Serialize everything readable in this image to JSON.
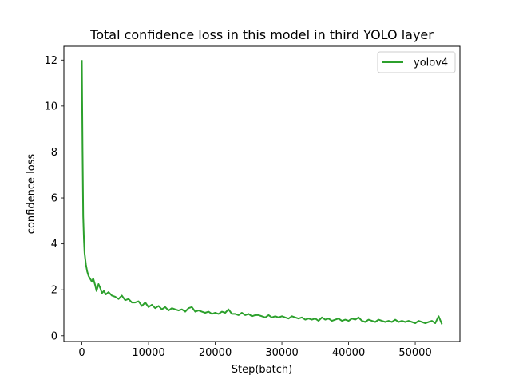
{
  "chart_data": {
    "type": "line",
    "title": "Total confidence loss in this model in third YOLO layer",
    "xlabel": "Step(batch)",
    "ylabel": "confidence loss",
    "xlim": [
      -2700,
      56700
    ],
    "ylim": [
      -0.25,
      12.6
    ],
    "xticks": [
      0,
      10000,
      20000,
      30000,
      40000,
      50000
    ],
    "xtick_labels": [
      "0",
      "10000",
      "20000",
      "30000",
      "40000",
      "50000"
    ],
    "yticks": [
      0,
      2,
      4,
      6,
      8,
      10,
      12
    ],
    "ytick_labels": [
      "0",
      "2",
      "4",
      "6",
      "8",
      "10",
      "12"
    ],
    "grid": false,
    "legend_position": "top-right",
    "colors": {
      "series": "#2ca02c",
      "axes": "#000000",
      "legend_border": "#cccccc"
    },
    "series": [
      {
        "name": "yolov4",
        "color": "#2ca02c",
        "x": [
          0,
          100,
          200,
          300,
          400,
          600,
          800,
          1000,
          1200,
          1500,
          1700,
          2000,
          2200,
          2500,
          2800,
          3000,
          3300,
          3600,
          4000,
          4500,
          5000,
          5500,
          6000,
          6500,
          7000,
          7500,
          8000,
          8500,
          9000,
          9500,
          10000,
          10500,
          11000,
          11500,
          12000,
          12500,
          13000,
          13500,
          14000,
          14500,
          15000,
          15500,
          16000,
          16500,
          17000,
          17500,
          18000,
          18500,
          19000,
          19500,
          20000,
          20500,
          21000,
          21500,
          22000,
          22500,
          23000,
          23500,
          24000,
          24500,
          25000,
          25500,
          26000,
          26500,
          27000,
          27500,
          28000,
          28500,
          29000,
          29500,
          30000,
          30500,
          31000,
          31500,
          32000,
          32500,
          33000,
          33500,
          34000,
          34500,
          35000,
          35500,
          36000,
          36500,
          37000,
          37500,
          38000,
          38500,
          39000,
          39500,
          40000,
          40500,
          41000,
          41500,
          42000,
          42500,
          43000,
          43500,
          44000,
          44500,
          45000,
          45500,
          46000,
          46500,
          47000,
          47500,
          48000,
          48500,
          49000,
          49500,
          50000,
          50500,
          51000,
          51500,
          52000,
          52500,
          53000,
          53500,
          54000
        ],
        "y": [
          12.0,
          8.0,
          5.2,
          4.2,
          3.6,
          3.1,
          2.8,
          2.6,
          2.5,
          2.35,
          2.5,
          2.2,
          1.95,
          2.25,
          2.05,
          1.85,
          1.95,
          1.8,
          1.9,
          1.75,
          1.7,
          1.6,
          1.75,
          1.55,
          1.6,
          1.45,
          1.45,
          1.5,
          1.3,
          1.45,
          1.25,
          1.35,
          1.2,
          1.3,
          1.15,
          1.25,
          1.1,
          1.2,
          1.15,
          1.1,
          1.15,
          1.05,
          1.2,
          1.25,
          1.05,
          1.1,
          1.05,
          1.0,
          1.05,
          0.95,
          1.0,
          0.95,
          1.05,
          1.0,
          1.15,
          0.95,
          0.95,
          0.9,
          1.0,
          0.9,
          0.95,
          0.85,
          0.9,
          0.9,
          0.85,
          0.8,
          0.9,
          0.8,
          0.85,
          0.8,
          0.85,
          0.8,
          0.75,
          0.85,
          0.8,
          0.75,
          0.8,
          0.7,
          0.75,
          0.7,
          0.75,
          0.65,
          0.8,
          0.7,
          0.75,
          0.65,
          0.7,
          0.75,
          0.65,
          0.7,
          0.65,
          0.75,
          0.7,
          0.8,
          0.65,
          0.6,
          0.7,
          0.65,
          0.6,
          0.7,
          0.65,
          0.6,
          0.65,
          0.6,
          0.7,
          0.6,
          0.65,
          0.6,
          0.65,
          0.6,
          0.55,
          0.65,
          0.6,
          0.55,
          0.6,
          0.65,
          0.55,
          0.85,
          0.5
        ]
      }
    ]
  }
}
